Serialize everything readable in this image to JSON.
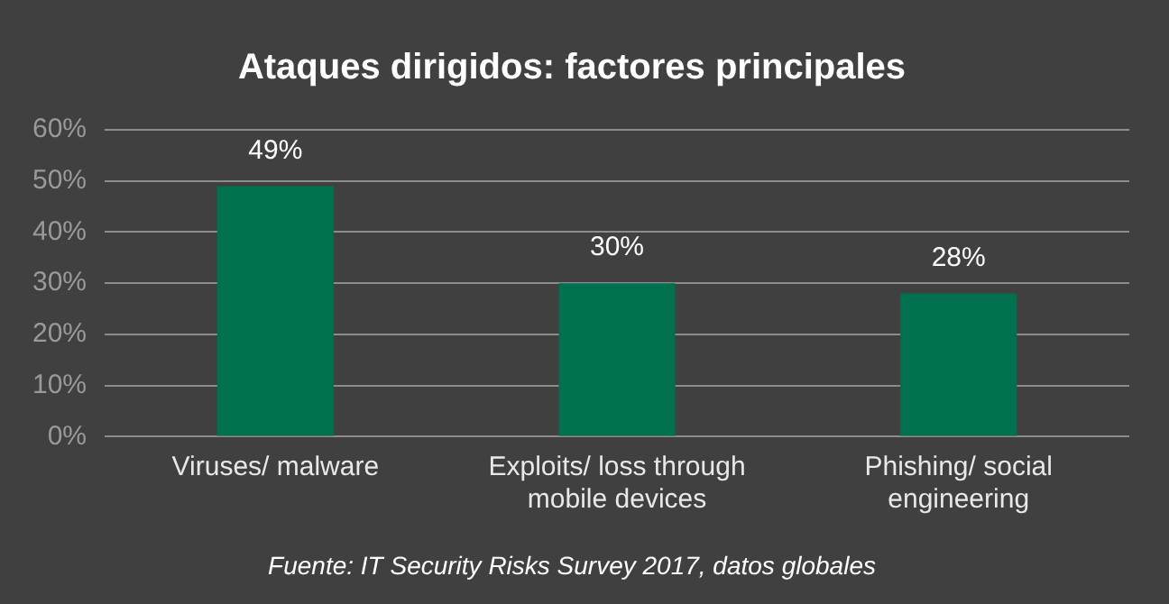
{
  "chart_data": {
    "type": "bar",
    "title": "Ataques dirigidos: factores principales",
    "categories": [
      "Viruses/ malware",
      "Exploits/ loss through mobile devices",
      "Phishing/ social engineering"
    ],
    "values": [
      49,
      30,
      28
    ],
    "color": "#00704f",
    "value_labels": [
      "49%",
      "30%",
      "28%"
    ],
    "ylim": [
      0,
      60
    ],
    "yticks": [
      {
        "value": 0,
        "label": "0%"
      },
      {
        "value": 10,
        "label": "10%"
      },
      {
        "value": 20,
        "label": "20%"
      },
      {
        "value": 30,
        "label": "30%"
      },
      {
        "value": 40,
        "label": "40%"
      },
      {
        "value": 50,
        "label": "50%"
      },
      {
        "value": 60,
        "label": "60%"
      }
    ],
    "grid": "y",
    "legend": false,
    "annotations": [
      "Fuente: IT Security Risks Survey 2017, datos globales"
    ]
  }
}
